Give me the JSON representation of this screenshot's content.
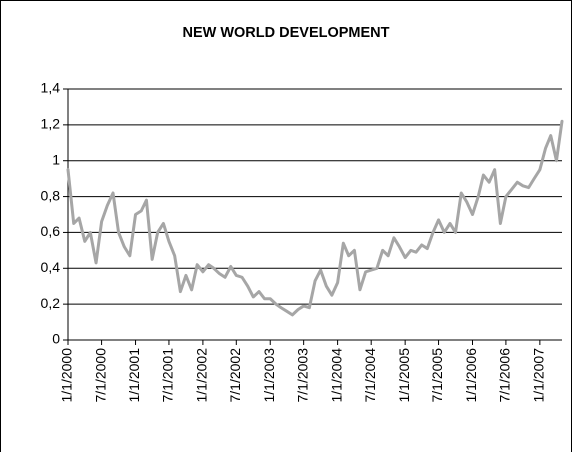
{
  "chart_data": {
    "type": "line",
    "title": "NEW WORLD DEVELOPMENT",
    "x": [
      "2000-01-01",
      "2000-02-01",
      "2000-03-01",
      "2000-04-01",
      "2000-05-01",
      "2000-06-01",
      "2000-07-01",
      "2000-08-01",
      "2000-09-01",
      "2000-10-01",
      "2000-11-01",
      "2000-12-01",
      "2001-01-01",
      "2001-02-01",
      "2001-03-01",
      "2001-04-01",
      "2001-05-01",
      "2001-06-01",
      "2001-07-01",
      "2001-08-01",
      "2001-09-01",
      "2001-10-01",
      "2001-11-01",
      "2001-12-01",
      "2002-01-01",
      "2002-02-01",
      "2002-03-01",
      "2002-04-01",
      "2002-05-01",
      "2002-06-01",
      "2002-07-01",
      "2002-08-01",
      "2002-09-01",
      "2002-10-01",
      "2002-11-01",
      "2002-12-01",
      "2003-01-01",
      "2003-02-01",
      "2003-03-01",
      "2003-04-01",
      "2003-05-01",
      "2003-06-01",
      "2003-07-01",
      "2003-08-01",
      "2003-09-01",
      "2003-10-01",
      "2003-11-01",
      "2003-12-01",
      "2004-01-01",
      "2004-02-01",
      "2004-03-01",
      "2004-04-01",
      "2004-05-01",
      "2004-06-01",
      "2004-07-01",
      "2004-08-01",
      "2004-09-01",
      "2004-10-01",
      "2004-11-01",
      "2004-12-01",
      "2005-01-01",
      "2005-02-01",
      "2005-03-01",
      "2005-04-01",
      "2005-05-01",
      "2005-06-01",
      "2005-07-01",
      "2005-08-01",
      "2005-09-01",
      "2005-10-01",
      "2005-11-01",
      "2005-12-01",
      "2006-01-01",
      "2006-02-01",
      "2006-03-01",
      "2006-04-01",
      "2006-05-01",
      "2006-06-01",
      "2006-07-01",
      "2006-08-01",
      "2006-09-01",
      "2006-10-01",
      "2006-11-01",
      "2006-12-01",
      "2007-01-01",
      "2007-02-01",
      "2007-03-01",
      "2007-04-01",
      "2007-05-01"
    ],
    "series": [
      {
        "name": "New World Development",
        "color": "#a6a6a6",
        "values": [
          0.95,
          0.65,
          0.68,
          0.55,
          0.6,
          0.43,
          0.66,
          0.75,
          0.82,
          0.6,
          0.52,
          0.47,
          0.7,
          0.72,
          0.78,
          0.45,
          0.6,
          0.65,
          0.55,
          0.47,
          0.27,
          0.36,
          0.28,
          0.42,
          0.38,
          0.42,
          0.4,
          0.37,
          0.35,
          0.41,
          0.36,
          0.35,
          0.3,
          0.24,
          0.27,
          0.23,
          0.23,
          0.2,
          0.18,
          0.16,
          0.14,
          0.17,
          0.19,
          0.18,
          0.33,
          0.39,
          0.3,
          0.25,
          0.32,
          0.54,
          0.47,
          0.5,
          0.28,
          0.38,
          0.39,
          0.4,
          0.5,
          0.47,
          0.57,
          0.52,
          0.46,
          0.5,
          0.49,
          0.53,
          0.51,
          0.6,
          0.67,
          0.6,
          0.65,
          0.6,
          0.82,
          0.77,
          0.7,
          0.8,
          0.92,
          0.88,
          0.95,
          0.65,
          0.8,
          0.84,
          0.88,
          0.86,
          0.85,
          0.9,
          0.95,
          1.07,
          1.14,
          1.0,
          1.22
        ]
      }
    ],
    "xlim": [
      "2000-01-01",
      "2007-05-01"
    ],
    "xticks": [
      {
        "value": "2000-01-01",
        "label": "1/1/2000"
      },
      {
        "value": "2000-07-01",
        "label": "7/1/2000"
      },
      {
        "value": "2001-01-01",
        "label": "1/1/2001"
      },
      {
        "value": "2001-07-01",
        "label": "7/1/2001"
      },
      {
        "value": "2002-01-01",
        "label": "1/1/2002"
      },
      {
        "value": "2002-07-01",
        "label": "7/1/2002"
      },
      {
        "value": "2003-01-01",
        "label": "1/1/2003"
      },
      {
        "value": "2003-07-01",
        "label": "7/1/2003"
      },
      {
        "value": "2004-01-01",
        "label": "1/1/2004"
      },
      {
        "value": "2004-07-01",
        "label": "7/1/2004"
      },
      {
        "value": "2005-01-01",
        "label": "1/1/2005"
      },
      {
        "value": "2005-07-01",
        "label": "7/1/2005"
      },
      {
        "value": "2006-01-01",
        "label": "1/1/2006"
      },
      {
        "value": "2006-07-01",
        "label": "7/1/2006"
      },
      {
        "value": "2007-01-01",
        "label": "1/1/2007"
      }
    ],
    "ylim": [
      0,
      1.4
    ],
    "yticks": [
      0,
      {
        "value": 0.2,
        "label": "0,2"
      },
      {
        "value": 0.4,
        "label": "0,4"
      },
      {
        "value": 0.6,
        "label": "0,6"
      },
      {
        "value": 0.8,
        "label": "0,8"
      },
      1,
      {
        "value": 1.2,
        "label": "1,2"
      },
      {
        "value": 1.4,
        "label": "1,4"
      }
    ],
    "grid": true
  }
}
